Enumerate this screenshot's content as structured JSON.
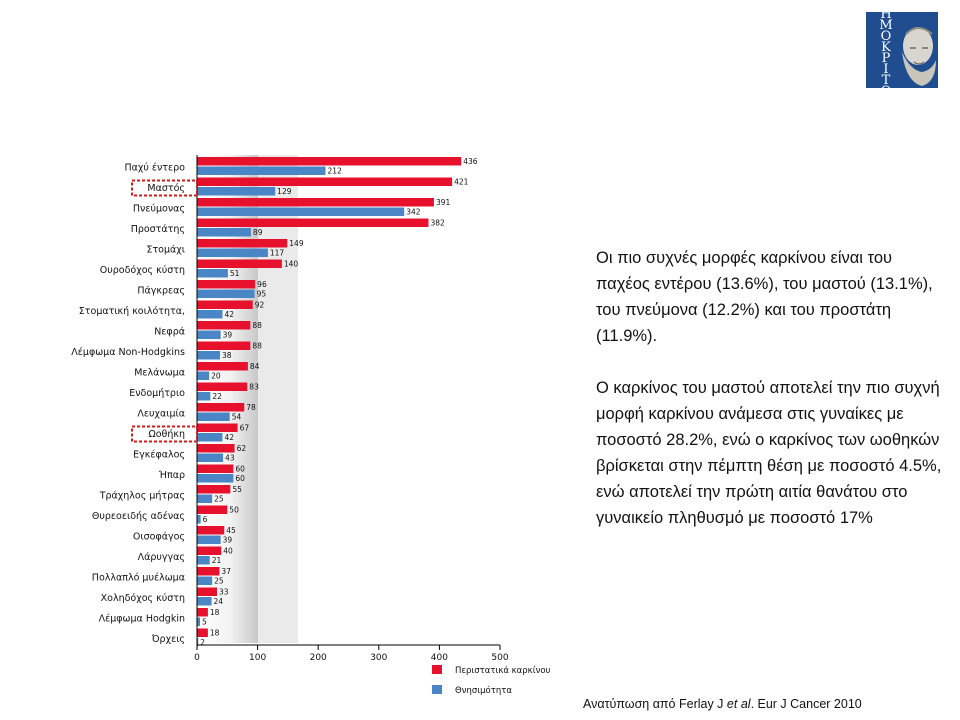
{
  "chart_data": {
    "type": "bar",
    "orientation": "horizontal",
    "categories": [
      "Παχύ έντερο",
      "Μαστός",
      "Πνεύμονας",
      "Προστάτης",
      "Στομάχι",
      "Ουροδόχος κύστη",
      "Πάγκρεας",
      "Στοματική κοιλότητα,",
      "Νεφρά",
      "Λέμφωμα Non-Hodgkins",
      "Μελάνωμα",
      "Ενδομήτριο",
      "Λευχαιμία",
      "Ωοθήκη",
      "Εγκέφαλος",
      "Ήπαρ",
      "Τράχηλος μήτρας",
      "Θυρεοειδής αδένας",
      "Οισοφάγος",
      "Λάρυγγας",
      "Πολλαπλό μυέλωμα",
      "Χοληδόχος κύστη",
      "Λέμφωμα Hodgkin",
      "Όρχεις"
    ],
    "series": [
      {
        "name": "Περιστατικά καρκίνου",
        "color": "#e8112d",
        "values": [
          436,
          421,
          391,
          382,
          149,
          140,
          96,
          92,
          88,
          88,
          84,
          83,
          78,
          67,
          62,
          60,
          55,
          50,
          45,
          40,
          37,
          33,
          18,
          18
        ]
      },
      {
        "name": "Θνησιμότητα",
        "color": "#4a86c5",
        "values": [
          212,
          129,
          342,
          89,
          117,
          51,
          95,
          42,
          39,
          38,
          20,
          22,
          54,
          42,
          43,
          60,
          25,
          6,
          39,
          21,
          25,
          24,
          5,
          2
        ]
      }
    ],
    "xlim": [
      0,
      500
    ],
    "xticks": [
      0,
      100,
      200,
      300,
      400,
      500
    ],
    "highlighted": [
      "Μαστός",
      "Ωοθήκη"
    ],
    "legend_position": "bottom"
  },
  "text": {
    "para1": "Οι πιο συχνές μορφές καρκίνου είναι του παχέος εντέρου (13.6%), του μαστού (13.1%), του πνεύμονα (12.2%) και του προστάτη (11.9%).",
    "para2": "Ο καρκίνος του μαστού αποτελεί την πιο συχνή μορφή καρκίνου ανάμεσα στις γυναίκες με ποσοστό 28.2%, ενώ ο καρκίνος των ωοθηκών βρίσκεται στην πέμπτη θέση με ποσοστό 4.5%, ενώ αποτελεί την πρώτη αιτία θανάτου στο γυναικείο πληθυσμό με ποσοστό 17%"
  },
  "citation": {
    "prefix": "Ανατύπωση από Ferlay J ",
    "etal": "et al",
    "suffix": ". Eur J Cancer 2010"
  },
  "logo": {
    "letters": [
      "Δ",
      "Η",
      "Μ",
      "Ο",
      "Κ",
      "Ρ",
      "Ι",
      "Τ",
      "Ο",
      "Σ"
    ],
    "color": "#1f4d8f"
  }
}
